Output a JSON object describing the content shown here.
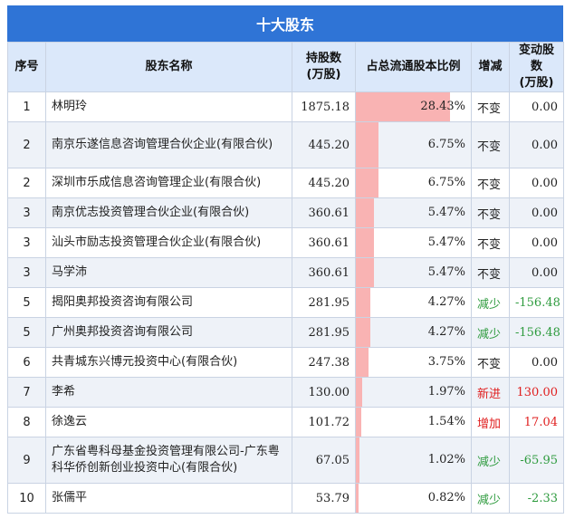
{
  "title": "十大股东",
  "headers": {
    "rank": "序号",
    "name": "股东名称",
    "shares_l1": "持股数",
    "shares_l2": "(万股)",
    "ratio": "占总流通股本比例",
    "change": "增减",
    "delta_l1": "变动股数",
    "delta_l2": "(万股)"
  },
  "colors": {
    "header_bar": "#2f74d6",
    "ratio_bar": "#f9b3b3",
    "down": "#2e9b3e",
    "up": "#e02020"
  },
  "rows": [
    {
      "rank": "1",
      "name": "林明玲",
      "shares": "1875.18",
      "ratio": "28.43%",
      "ratio_value": 28.43,
      "change": "不变",
      "change_type": "same",
      "delta": "0.00"
    },
    {
      "rank": "2",
      "name": "南京乐遂信息咨询管理合伙企业(有限合伙)",
      "shares": "445.20",
      "ratio": "6.75%",
      "ratio_value": 6.75,
      "change": "不变",
      "change_type": "same",
      "delta": "0.00",
      "tall": true
    },
    {
      "rank": "2",
      "name": "深圳市乐成信息咨询管理企业(有限合伙)",
      "shares": "445.20",
      "ratio": "6.75%",
      "ratio_value": 6.75,
      "change": "不变",
      "change_type": "same",
      "delta": "0.00"
    },
    {
      "rank": "3",
      "name": "南京优志投资管理合伙企业(有限合伙)",
      "shares": "360.61",
      "ratio": "5.47%",
      "ratio_value": 5.47,
      "change": "不变",
      "change_type": "same",
      "delta": "0.00"
    },
    {
      "rank": "3",
      "name": "汕头市励志投资管理合伙企业(有限合伙)",
      "shares": "360.61",
      "ratio": "5.47%",
      "ratio_value": 5.47,
      "change": "不变",
      "change_type": "same",
      "delta": "0.00"
    },
    {
      "rank": "3",
      "name": "马学沛",
      "shares": "360.61",
      "ratio": "5.47%",
      "ratio_value": 5.47,
      "change": "不变",
      "change_type": "same",
      "delta": "0.00"
    },
    {
      "rank": "5",
      "name": "揭阳奥邦投资咨询有限公司",
      "shares": "281.95",
      "ratio": "4.27%",
      "ratio_value": 4.27,
      "change": "减少",
      "change_type": "down",
      "delta": "-156.48"
    },
    {
      "rank": "5",
      "name": "广州奥邦投资咨询有限公司",
      "shares": "281.95",
      "ratio": "4.27%",
      "ratio_value": 4.27,
      "change": "减少",
      "change_type": "down",
      "delta": "-156.48"
    },
    {
      "rank": "6",
      "name": "共青城东兴博元投资中心(有限合伙)",
      "shares": "247.38",
      "ratio": "3.75%",
      "ratio_value": 3.75,
      "change": "不变",
      "change_type": "same",
      "delta": "0.00"
    },
    {
      "rank": "7",
      "name": "李希",
      "shares": "130.00",
      "ratio": "1.97%",
      "ratio_value": 1.97,
      "change": "新进",
      "change_type": "up",
      "delta": "130.00"
    },
    {
      "rank": "8",
      "name": "徐逸云",
      "shares": "101.72",
      "ratio": "1.54%",
      "ratio_value": 1.54,
      "change": "增加",
      "change_type": "up",
      "delta": "17.04"
    },
    {
      "rank": "9",
      "name": "广东省粤科母基金投资管理有限公司-广东粤科华侨创新创业投资中心(有限合伙)",
      "shares": "67.05",
      "ratio": "1.02%",
      "ratio_value": 1.02,
      "change": "减少",
      "change_type": "down",
      "delta": "-65.95",
      "tall": true
    },
    {
      "rank": "10",
      "name": "张儒平",
      "shares": "53.79",
      "ratio": "0.82%",
      "ratio_value": 0.82,
      "change": "减少",
      "change_type": "down",
      "delta": "-2.33"
    }
  ]
}
